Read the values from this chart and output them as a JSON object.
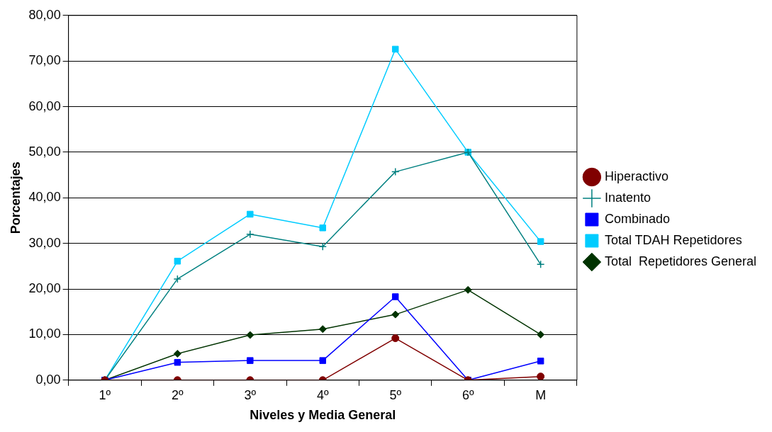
{
  "chart_data": {
    "type": "line",
    "xlabel": "Niveles y Media General",
    "ylabel": "Porcentajes",
    "categories": [
      "1º",
      "2º",
      "3º",
      "4º",
      "5º",
      "6º",
      "M"
    ],
    "series": [
      {
        "name": "Hiperactivo",
        "color": "#800000",
        "marker": "circle",
        "values": [
          0,
          0,
          0,
          0,
          9.2,
          0,
          0.8
        ]
      },
      {
        "name": "Inatento",
        "color": "#008080",
        "marker": "cross",
        "values": [
          0,
          22.2,
          32.0,
          29.3,
          45.7,
          50.0,
          25.4
        ]
      },
      {
        "name": "Combinado",
        "color": "#0000ff",
        "marker": "square",
        "values": [
          0,
          3.9,
          4.3,
          4.3,
          18.3,
          0,
          4.2
        ]
      },
      {
        "name": "Total TDAH Repetidores",
        "color": "#00ccff",
        "marker": "square",
        "values": [
          0,
          26.1,
          36.4,
          33.4,
          72.6,
          50.0,
          30.4
        ]
      },
      {
        "name": "Total  Repetidores General",
        "color": "#003300",
        "marker": "diamond",
        "values": [
          0,
          5.8,
          9.9,
          11.2,
          14.4,
          19.8,
          10.0
        ]
      }
    ],
    "ylim": [
      0,
      80
    ],
    "yticks": [
      {
        "value": 0,
        "label": "0,00"
      },
      {
        "value": 10,
        "label": "10,00"
      },
      {
        "value": 20,
        "label": "20,00"
      },
      {
        "value": 30,
        "label": "30,00"
      },
      {
        "value": 40,
        "label": "40,00"
      },
      {
        "value": 50,
        "label": "50,00"
      },
      {
        "value": 60,
        "label": "60,00"
      },
      {
        "value": 70,
        "label": "70,00"
      },
      {
        "value": 80,
        "label": "80,00"
      }
    ],
    "grid": "y",
    "legend": "right"
  }
}
